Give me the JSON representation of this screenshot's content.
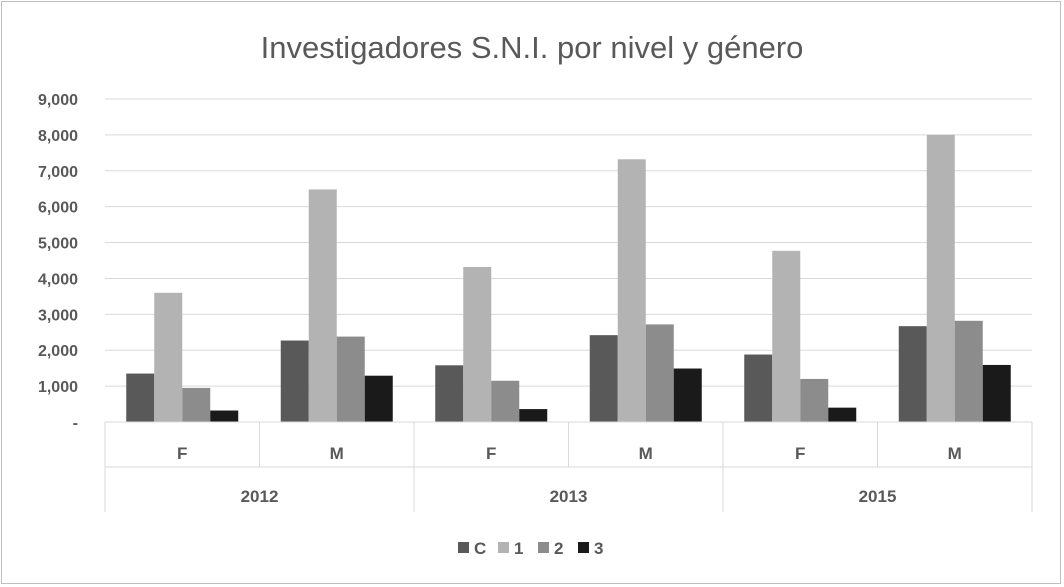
{
  "chart_data": {
    "type": "bar",
    "title": "Investigadores S.N.I. por nivel y género",
    "xlabel": "",
    "ylabel": "",
    "ylim": [
      0,
      9000
    ],
    "yticks": [
      "-",
      "1,000",
      "2,000",
      "3,000",
      "4,000",
      "5,000",
      "6,000",
      "7,000",
      "8,000",
      "9,000"
    ],
    "groups": [
      {
        "year": "2012",
        "categories": [
          "F",
          "M"
        ]
      },
      {
        "year": "2013",
        "categories": [
          "F",
          "M"
        ]
      },
      {
        "year": "2015",
        "categories": [
          "F",
          "M"
        ]
      }
    ],
    "categories": [
      "F",
      "M",
      "F",
      "M",
      "F",
      "M"
    ],
    "series": [
      {
        "name": "C",
        "color": "#595959",
        "values": [
          1350,
          2270,
          1580,
          2420,
          1880,
          2670
        ]
      },
      {
        "name": "1",
        "color": "#b3b3b3",
        "values": [
          3600,
          6480,
          4320,
          7320,
          4770,
          8000
        ]
      },
      {
        "name": "2",
        "color": "#8c8c8c",
        "values": [
          950,
          2380,
          1150,
          2720,
          1200,
          2820
        ]
      },
      {
        "name": "3",
        "color": "#1a1a1a",
        "values": [
          320,
          1290,
          360,
          1490,
          400,
          1590
        ]
      }
    ],
    "grid": true,
    "legend_position": "bottom"
  }
}
